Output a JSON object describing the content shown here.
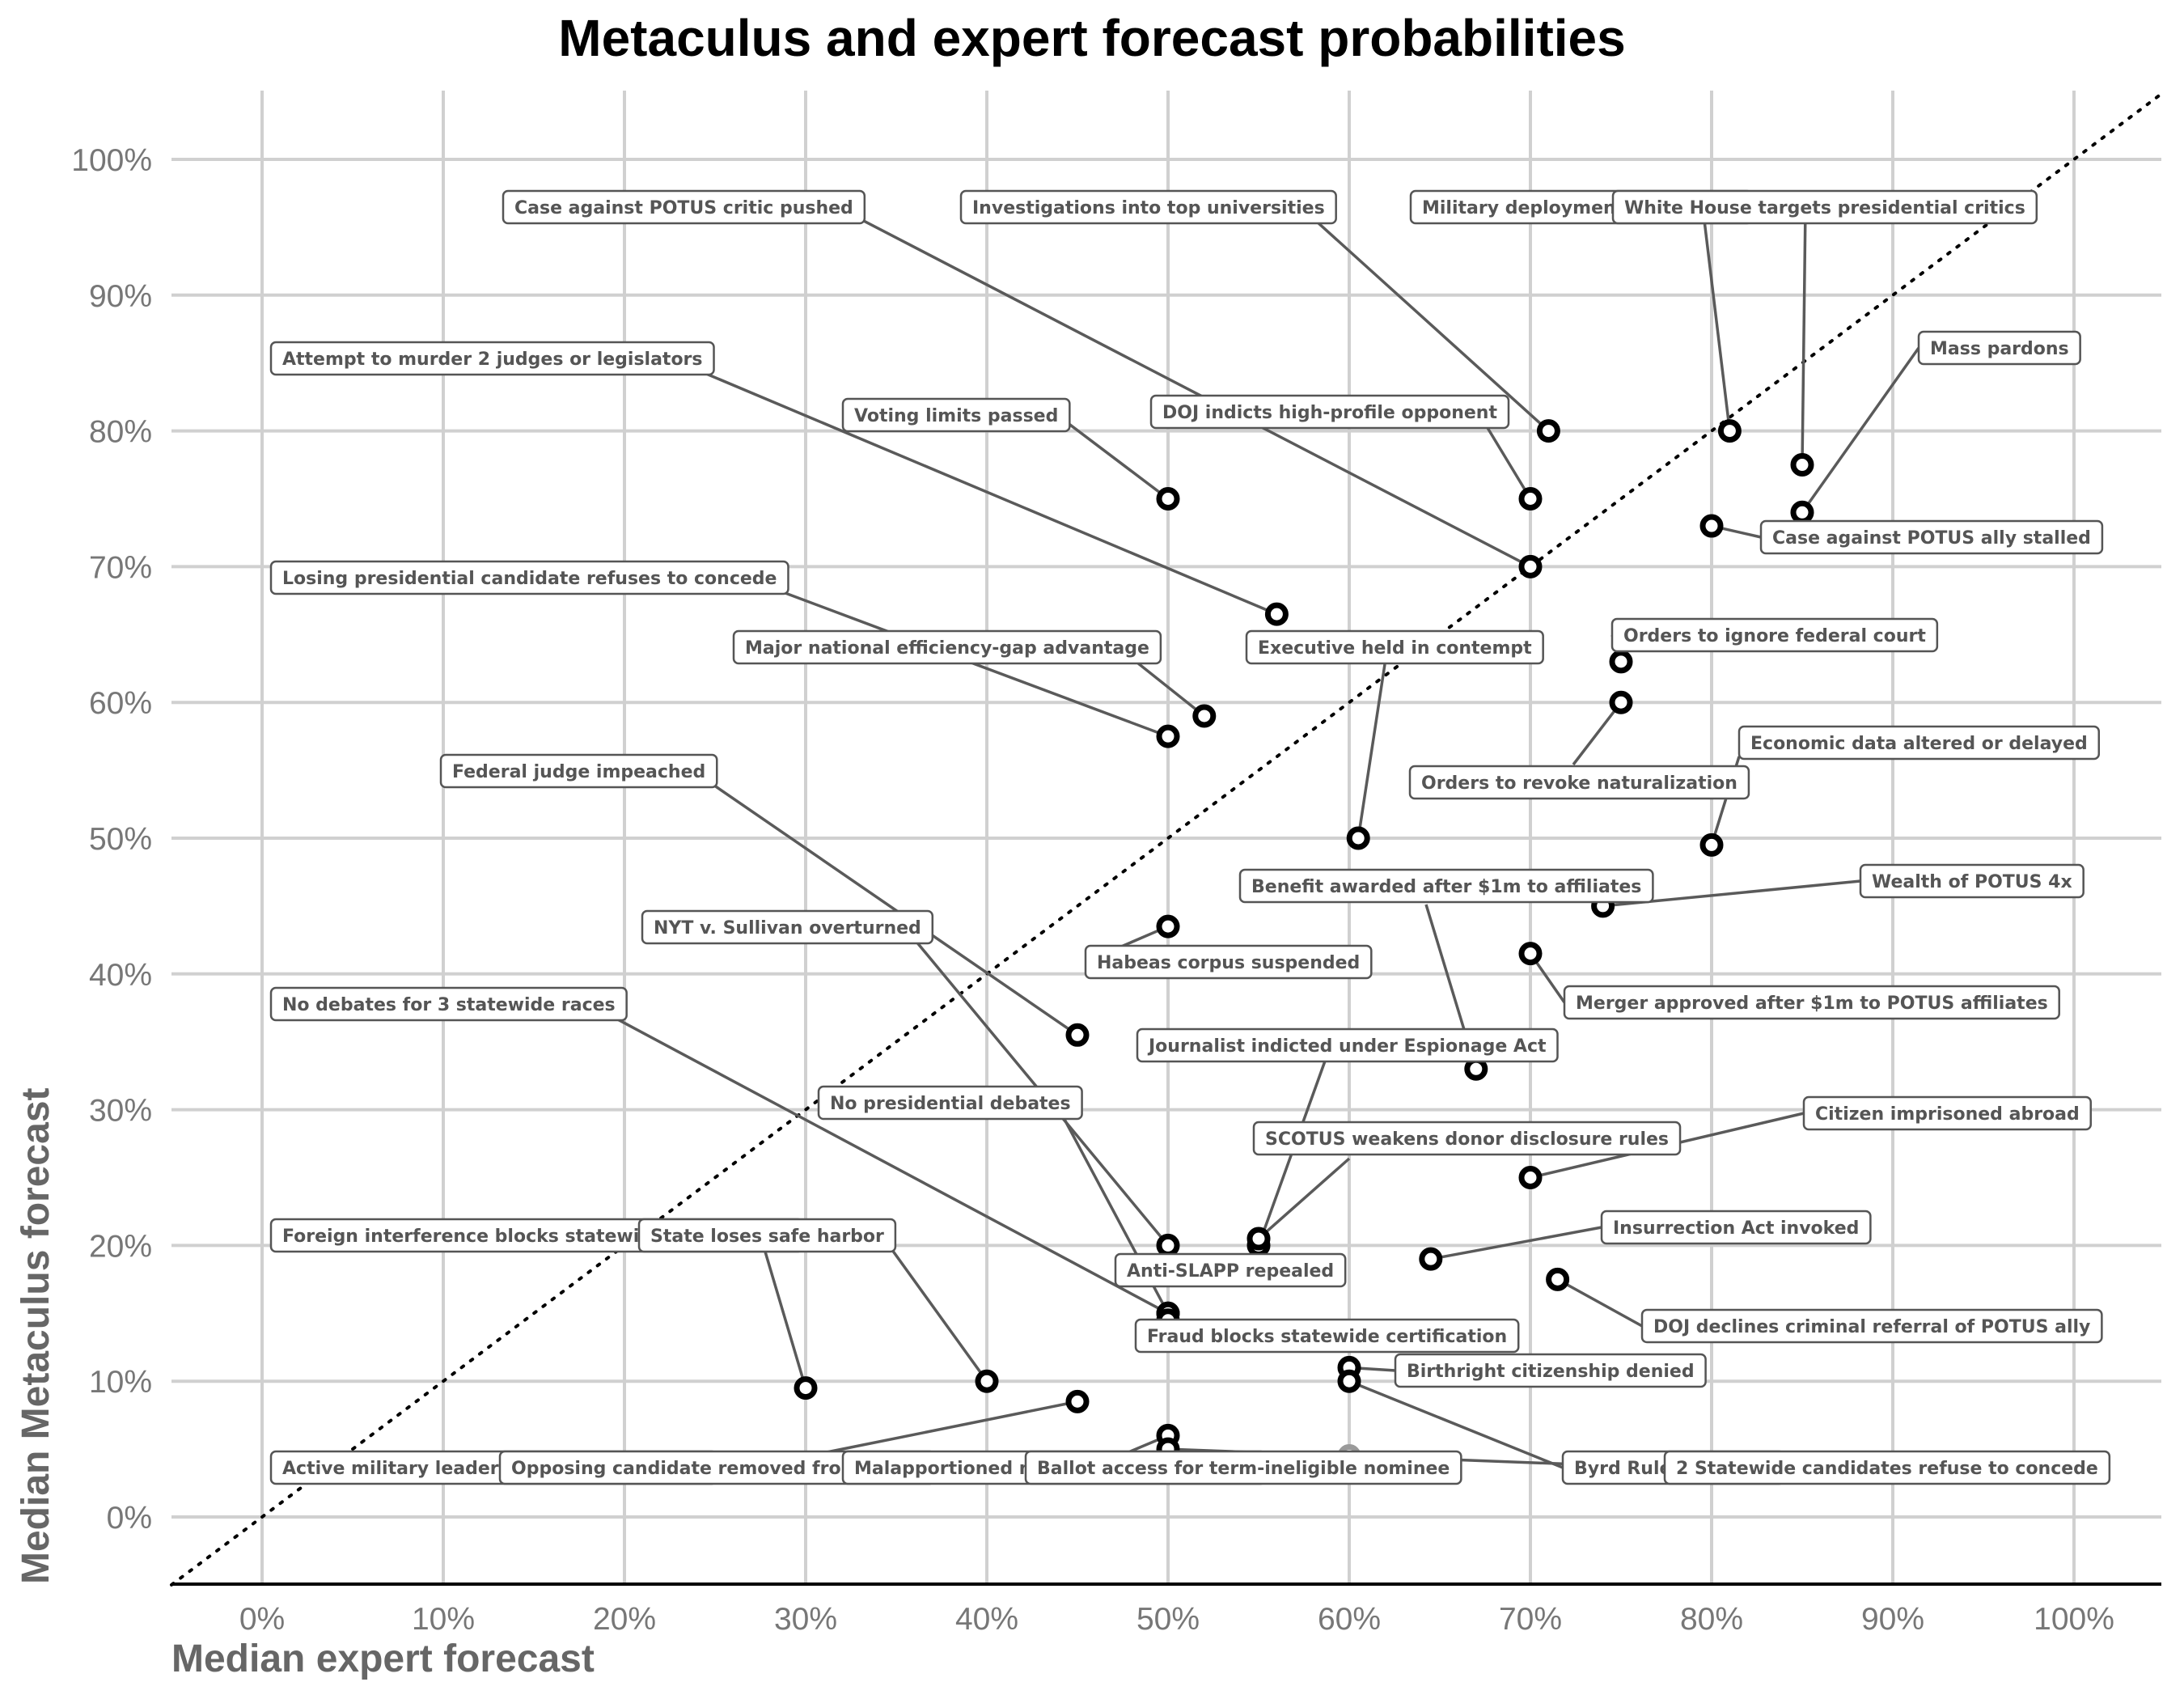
{
  "chart_data": {
    "type": "scatter",
    "title": "Metaculus and expert forecast probabilities",
    "xlabel": "Median expert forecast",
    "ylabel": "Median Metaculus forecast",
    "xlim": [
      -5,
      105
    ],
    "ylim": [
      -5,
      105
    ],
    "x_ticks": [
      "0%",
      "10%",
      "20%",
      "30%",
      "40%",
      "50%",
      "60%",
      "70%",
      "80%",
      "90%",
      "100%"
    ],
    "y_ticks": [
      "0%",
      "10%",
      "20%",
      "30%",
      "40%",
      "50%",
      "60%",
      "70%",
      "80%",
      "90%",
      "100%"
    ],
    "tick_values": [
      0,
      10,
      20,
      30,
      40,
      50,
      60,
      70,
      80,
      90,
      100
    ],
    "reference_line": "y = x (dotted)",
    "grid": true,
    "points": [
      {
        "label": "Case against POTUS critic pushed",
        "x": 70,
        "y": 70
      },
      {
        "label": "Investigations into top universities",
        "x": 71,
        "y": 80
      },
      {
        "label": "Military deployments to 3 cities",
        "x": 81,
        "y": 80
      },
      {
        "label": "White House targets presidential critics",
        "x": 85,
        "y": 77.5
      },
      {
        "label": "Mass pardons",
        "x": 85,
        "y": 74
      },
      {
        "label": "Attempt to murder 2 judges or legislators",
        "x": 56,
        "y": 66.5
      },
      {
        "label": "Voting limits passed",
        "x": 50,
        "y": 75
      },
      {
        "label": "DOJ indicts high-profile opponent",
        "x": 70,
        "y": 75
      },
      {
        "label": "Case against POTUS ally stalled",
        "x": 80,
        "y": 73
      },
      {
        "label": "Losing presidential candidate refuses to concede",
        "x": 50,
        "y": 57.5
      },
      {
        "label": "Major national efficiency-gap advantage",
        "x": 52,
        "y": 59
      },
      {
        "label": "Executive held in contempt",
        "x": 60.5,
        "y": 50
      },
      {
        "label": "Orders to ignore federal court",
        "x": 75,
        "y": 63
      },
      {
        "label": "Orders to revoke naturalization",
        "x": 75,
        "y": 60
      },
      {
        "label": "Economic data altered or delayed",
        "x": 80,
        "y": 49.5
      },
      {
        "label": "Federal judge impeached",
        "x": 45,
        "y": 35.5
      },
      {
        "label": "Benefit awarded after $1m to affiliates",
        "x": 67,
        "y": 33
      },
      {
        "label": "Wealth of POTUS 4x",
        "x": 74,
        "y": 45
      },
      {
        "label": "NYT v. Sullivan overturned",
        "x": 50,
        "y": 20
      },
      {
        "label": "Habeas corpus suspended",
        "x": 50,
        "y": 43.5
      },
      {
        "label": "Merger approved after $1m to POTUS affiliates",
        "x": 70,
        "y": 41.5
      },
      {
        "label": "No debates for 3 statewide races",
        "x": 50,
        "y": 15
      },
      {
        "label": "Journalist indicted under Espionage Act",
        "x": 55,
        "y": 20
      },
      {
        "label": "No presidential debates",
        "x": 50,
        "y": 15
      },
      {
        "label": "SCOTUS weakens donor disclosure rules",
        "x": 55,
        "y": 20.5
      },
      {
        "label": "Citizen imprisoned abroad",
        "x": 70,
        "y": 25
      },
      {
        "label": "Foreign interference blocks statewide certification",
        "x": 30,
        "y": 9.5
      },
      {
        "label": "State loses safe harbor",
        "x": 40,
        "y": 10
      },
      {
        "label": "Anti-SLAPP repealed",
        "x": 50,
        "y": 18
      },
      {
        "label": "Insurrection Act invoked",
        "x": 64.5,
        "y": 19
      },
      {
        "label": "DOJ declines criminal referral of POTUS ally",
        "x": 71.5,
        "y": 17.5
      },
      {
        "label": "Fraud blocks statewide certification",
        "x": 50,
        "y": 14.5
      },
      {
        "label": "Birthright citizenship denied",
        "x": 60,
        "y": 11
      },
      {
        "label": "Active military leader joins partisan event",
        "x": 45,
        "y": 8.5
      },
      {
        "label": "Opposing candidate removed from ballot",
        "x": 39,
        "y": 4
      },
      {
        "label": "Malapportioned maps used in midterms",
        "x": 50,
        "y": 6
      },
      {
        "label": "Ballot access for term-ineligible nominee",
        "x": 60,
        "y": 4.5
      },
      {
        "label": "Byrd Rule bypassed",
        "x": 60,
        "y": 10
      },
      {
        "label": "2 Statewide candidates refuse to concede",
        "x": 50,
        "y": 5
      }
    ],
    "visible_labels": [
      "Case against POTUS critic pushed",
      "Investigations into top universities",
      "Military deployments to 3 cities",
      "White House targets presidential critics",
      "Mass pardons",
      "Attempt to murder 2 judges or legislators",
      "Voting limits passed",
      "DOJ indicts high-profile opponent",
      "Case against POTUS ally stalled",
      "Losing presidential candidate refuses to concede",
      "Major national efficiency-gap advantage",
      "Executive held in contempt",
      "Orders to ignore federal court",
      "Orders to revoke naturalization",
      "Economic data altered or delayed",
      "Federal judge impeached",
      "Benefit awarded after $1m to affiliates",
      "Wealth of POTUS 4x",
      "NYT v. Sullivan overturned",
      "Habeas corpus suspended",
      "Merger approved after $1m to POTUS affiliates",
      "No debates for 3 statewide races",
      "Journalist indicted under Espionage Act",
      "No presidential debates",
      "SCOTUS weakens donor disclosure rules",
      "Citizen imprisoned abroad",
      "Foreign interference blocks statewide certification",
      "State loses safe harbor",
      "Anti-SLAPP repealed",
      "Insurrection Act invoked",
      "DOJ declines criminal referral of POTUS ally",
      "Fraud blocks statewide certification",
      "Birthright citizenship denied",
      "Active military leader joins partisan event",
      "Opposing candidate removed from ballot",
      "Malapportioned maps used in midterms",
      "Ballot access for term-ineligible nominee",
      "Byrd Rule bypassed",
      "2 Statewide candidates refuse to concede"
    ]
  }
}
